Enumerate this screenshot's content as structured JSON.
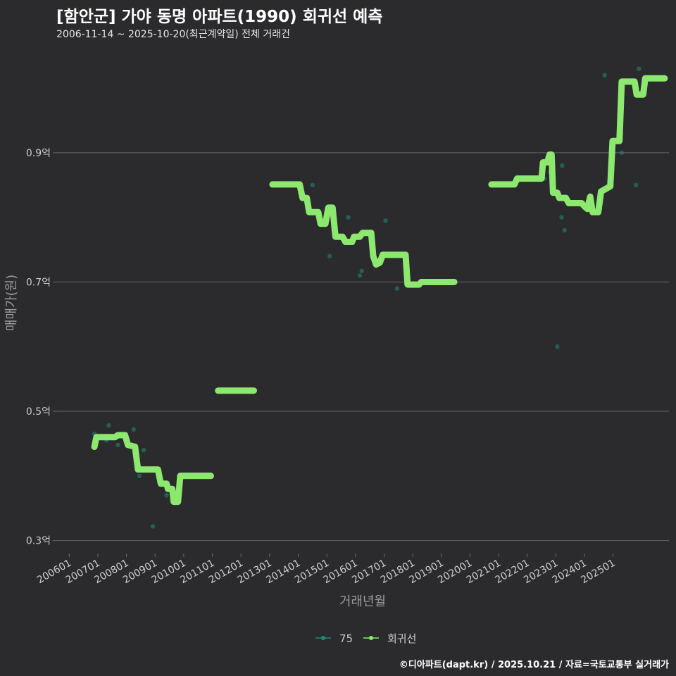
{
  "title": "[함안군] 가야 동명 아파트(1990) 회귀선 예측",
  "subtitle": "2006-11-14 ~ 2025-10-20(최근계약일) 전체 거래건",
  "footer": "©디아파트(dapt.kr) / 2025.10.21 / 자료=국토교통부 실거래가",
  "colors": {
    "background": "#2b2b2d",
    "grid": "#666666",
    "axis_text": "#cccccc",
    "axis_title": "#9a9a9a",
    "scatter": "#1f8b7a",
    "regression": "#8ce86e"
  },
  "chart_data": {
    "type": "scatter",
    "xlabel": "거래년월",
    "ylabel": "매매가(원)",
    "xlim": [
      2005.55,
      2026.95
    ],
    "ylim": [
      0.28,
      1.06
    ],
    "yticks": [
      {
        "value": 0.3,
        "label": "0.3억"
      },
      {
        "value": 0.5,
        "label": "0.5억"
      },
      {
        "value": 0.7,
        "label": "0.7억"
      },
      {
        "value": 0.9,
        "label": "0.9억"
      }
    ],
    "xticks": [
      {
        "value": 2006.0,
        "label": "200601"
      },
      {
        "value": 2007.0,
        "label": "200701"
      },
      {
        "value": 2008.0,
        "label": "200801"
      },
      {
        "value": 2009.0,
        "label": "200901"
      },
      {
        "value": 2010.0,
        "label": "201001"
      },
      {
        "value": 2011.0,
        "label": "201101"
      },
      {
        "value": 2012.0,
        "label": "201201"
      },
      {
        "value": 2013.0,
        "label": "201301"
      },
      {
        "value": 2014.0,
        "label": "201401"
      },
      {
        "value": 2015.0,
        "label": "201501"
      },
      {
        "value": 2016.0,
        "label": "201601"
      },
      {
        "value": 2017.0,
        "label": "201701"
      },
      {
        "value": 2018.0,
        "label": "201801"
      },
      {
        "value": 2019.0,
        "label": "201901"
      },
      {
        "value": 2020.0,
        "label": "202001"
      },
      {
        "value": 2021.0,
        "label": "202101"
      },
      {
        "value": 2022.0,
        "label": "202201"
      },
      {
        "value": 2023.0,
        "label": "202301"
      },
      {
        "value": 2024.0,
        "label": "202401"
      },
      {
        "value": 2025.0,
        "label": "202501"
      }
    ],
    "legend": {
      "position": "bottom",
      "entries": [
        {
          "label": "75",
          "color": "#1f8b7a"
        },
        {
          "label": "회귀선",
          "color": "#8ce86e"
        }
      ]
    },
    "series": [
      {
        "name": "75",
        "kind": "points",
        "points": [
          [
            2006.88,
            0.465
          ],
          [
            2007.0,
            0.46
          ],
          [
            2007.3,
            0.455
          ],
          [
            2007.38,
            0.478
          ],
          [
            2007.5,
            0.46
          ],
          [
            2007.7,
            0.448
          ],
          [
            2008.25,
            0.472
          ],
          [
            2008.45,
            0.4
          ],
          [
            2008.6,
            0.44
          ],
          [
            2008.92,
            0.322
          ],
          [
            2009.15,
            0.39
          ],
          [
            2009.4,
            0.37
          ],
          [
            2014.5,
            0.85
          ],
          [
            2015.1,
            0.74
          ],
          [
            2015.75,
            0.8
          ],
          [
            2016.15,
            0.71
          ],
          [
            2016.22,
            0.717
          ],
          [
            2017.05,
            0.795
          ],
          [
            2017.45,
            0.69
          ],
          [
            2022.6,
            0.86
          ],
          [
            2022.8,
            0.87
          ],
          [
            2023.05,
            0.6
          ],
          [
            2023.2,
            0.8
          ],
          [
            2023.22,
            0.88
          ],
          [
            2023.3,
            0.78
          ],
          [
            2024.7,
            1.02
          ],
          [
            2025.3,
            0.9
          ],
          [
            2025.8,
            0.85
          ],
          [
            2025.9,
            1.03
          ]
        ]
      },
      {
        "name": "회귀선",
        "kind": "segments",
        "segments": [
          [
            [
              2006.88,
              0.445
            ],
            [
              2006.95,
              0.46
            ],
            [
              2007.6,
              0.46
            ],
            [
              2007.7,
              0.463
            ],
            [
              2007.95,
              0.463
            ],
            [
              2008.05,
              0.448
            ],
            [
              2008.3,
              0.445
            ],
            [
              2008.4,
              0.41
            ],
            [
              2009.1,
              0.41
            ],
            [
              2009.2,
              0.388
            ],
            [
              2009.4,
              0.388
            ],
            [
              2009.45,
              0.38
            ],
            [
              2009.6,
              0.38
            ],
            [
              2009.65,
              0.36
            ],
            [
              2009.8,
              0.36
            ],
            [
              2009.88,
              0.4
            ],
            [
              2010.95,
              0.4
            ]
          ],
          [
            [
              2011.2,
              0.532
            ],
            [
              2012.45,
              0.532
            ]
          ],
          [
            [
              2013.1,
              0.851
            ],
            [
              2014.05,
              0.851
            ],
            [
              2014.15,
              0.83
            ],
            [
              2014.3,
              0.83
            ],
            [
              2014.38,
              0.808
            ],
            [
              2014.7,
              0.808
            ],
            [
              2014.78,
              0.79
            ],
            [
              2014.95,
              0.79
            ],
            [
              2015.05,
              0.815
            ],
            [
              2015.2,
              0.815
            ],
            [
              2015.3,
              0.77
            ],
            [
              2015.55,
              0.77
            ],
            [
              2015.65,
              0.762
            ],
            [
              2015.88,
              0.762
            ],
            [
              2015.95,
              0.77
            ],
            [
              2016.15,
              0.77
            ],
            [
              2016.25,
              0.776
            ],
            [
              2016.55,
              0.776
            ],
            [
              2016.62,
              0.74
            ],
            [
              2016.72,
              0.727
            ],
            [
              2016.85,
              0.73
            ],
            [
              2016.95,
              0.742
            ],
            [
              2017.75,
              0.742
            ],
            [
              2017.82,
              0.696
            ],
            [
              2018.22,
              0.696
            ],
            [
              2018.3,
              0.7
            ],
            [
              2019.45,
              0.7
            ]
          ],
          [
            [
              2020.75,
              0.851
            ],
            [
              2021.55,
              0.851
            ],
            [
              2021.65,
              0.86
            ],
            [
              2022.5,
              0.86
            ],
            [
              2022.55,
              0.885
            ],
            [
              2022.7,
              0.885
            ],
            [
              2022.78,
              0.897
            ],
            [
              2022.85,
              0.897
            ],
            [
              2022.9,
              0.838
            ],
            [
              2023.05,
              0.838
            ],
            [
              2023.12,
              0.83
            ],
            [
              2023.35,
              0.83
            ],
            [
              2023.45,
              0.822
            ],
            [
              2023.9,
              0.822
            ],
            [
              2024.0,
              0.817
            ],
            [
              2024.1,
              0.813
            ],
            [
              2024.2,
              0.832
            ],
            [
              2024.28,
              0.808
            ],
            [
              2024.48,
              0.808
            ],
            [
              2024.58,
              0.84
            ],
            [
              2024.9,
              0.848
            ],
            [
              2024.98,
              0.918
            ],
            [
              2025.22,
              0.918
            ],
            [
              2025.3,
              1.01
            ],
            [
              2025.75,
              1.01
            ],
            [
              2025.82,
              0.99
            ],
            [
              2026.05,
              0.99
            ],
            [
              2026.12,
              1.015
            ],
            [
              2026.8,
              1.015
            ]
          ]
        ]
      }
    ]
  }
}
